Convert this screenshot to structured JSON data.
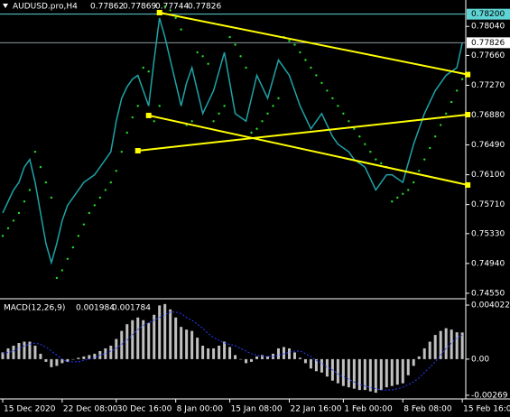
{
  "chart_data": [
    {
      "type": "line",
      "title": "AUDUSD.pro,H4",
      "ohlc": [
        0.77862,
        0.77869,
        0.77744,
        0.77826
      ],
      "color": "#1fa3a8",
      "categories": [
        "15 Dec 2020",
        null,
        null,
        null,
        null,
        null,
        null,
        null,
        null,
        null,
        null,
        "22 Dec 08:00",
        null,
        null,
        null,
        null,
        null,
        null,
        null,
        null,
        null,
        "30 Dec 16:00",
        null,
        null,
        null,
        null,
        null,
        null,
        null,
        null,
        null,
        null,
        "8 Jan 00:00",
        null,
        null,
        null,
        null,
        null,
        null,
        null,
        null,
        null,
        "15 Jan 08:00",
        null,
        null,
        null,
        null,
        null,
        null,
        null,
        null,
        null,
        null,
        "22 Jan 16:00",
        null,
        null,
        null,
        null,
        null,
        null,
        null,
        null,
        null,
        "1 Feb 00:00",
        null,
        null,
        null,
        null,
        null,
        null,
        null,
        null,
        null,
        null,
        "8 Feb 08:00",
        null,
        null,
        null,
        null,
        null,
        null,
        null,
        null,
        null,
        null,
        "15 Feb 16:00"
      ],
      "values": [
        0.756,
        0.7575,
        0.759,
        0.76,
        0.762,
        0.763,
        0.76,
        0.756,
        0.752,
        0.7495,
        0.752,
        0.755,
        0.757,
        0.758,
        0.759,
        0.76,
        0.7605,
        0.761,
        0.762,
        0.763,
        0.764,
        0.768,
        0.771,
        0.7725,
        0.7735,
        0.774,
        0.772,
        0.77,
        0.776,
        0.7815,
        0.779,
        0.776,
        0.773,
        0.77,
        0.773,
        0.775,
        0.772,
        0.769,
        0.7705,
        0.772,
        0.7745,
        0.777,
        0.773,
        0.769,
        0.7685,
        0.768,
        0.771,
        0.774,
        0.7725,
        0.771,
        0.7735,
        0.776,
        0.775,
        0.774,
        0.772,
        0.77,
        0.7685,
        0.767,
        0.768,
        0.769,
        0.7675,
        0.766,
        0.765,
        0.7645,
        0.764,
        0.763,
        0.7625,
        0.762,
        0.7605,
        0.759,
        0.76,
        0.761,
        0.761,
        0.7605,
        0.76,
        0.7625,
        0.765,
        0.767,
        0.769,
        0.7705,
        0.772,
        0.773,
        0.774,
        0.7745,
        0.775,
        0.77826
      ],
      "sar": {
        "color": "#22dd22",
        "values": [
          0.753,
          0.754,
          0.755,
          0.756,
          0.7575,
          0.759,
          0.764,
          0.762,
          0.76,
          0.758,
          0.7475,
          0.7485,
          0.75,
          0.7515,
          0.753,
          0.7545,
          0.756,
          0.757,
          0.758,
          0.759,
          0.76,
          0.7615,
          0.764,
          0.7665,
          0.7685,
          0.77,
          0.775,
          0.7745,
          0.768,
          0.77,
          0.783,
          0.7825,
          0.7815,
          0.78,
          0.7675,
          0.768,
          0.777,
          0.7765,
          0.7755,
          0.768,
          0.769,
          0.77,
          0.779,
          0.778,
          0.7765,
          0.775,
          0.7665,
          0.767,
          0.768,
          0.769,
          0.77,
          0.771,
          0.779,
          0.7785,
          0.778,
          0.777,
          0.776,
          0.775,
          0.774,
          0.773,
          0.772,
          0.771,
          0.77,
          0.769,
          0.768,
          0.767,
          0.766,
          0.765,
          0.764,
          0.763,
          0.7625,
          0.762,
          0.7575,
          0.758,
          0.7585,
          0.759,
          0.76,
          0.7615,
          0.763,
          0.7645,
          0.766,
          0.7675,
          0.769,
          0.7705,
          0.772,
          0.7735
        ]
      },
      "trendlines": {
        "color": "#ffff00",
        "lines": [
          {
            "x": [
              29,
              86
            ],
            "y": [
              0.7822,
              0.7741
            ]
          },
          {
            "x": [
              25,
              86
            ],
            "y": [
              0.76414,
              0.76886
            ]
          },
          {
            "x": [
              27,
              86
            ],
            "y": [
              0.76875,
              0.75966
            ]
          }
        ]
      },
      "price_lines": [
        {
          "value": 0.782,
          "label": "0.78200",
          "color": "#5fd3d3"
        },
        {
          "value": 0.77826,
          "color": "#8a9aa0"
        }
      ],
      "ylim": [
        0.7449,
        0.78385
      ],
      "yticks": [
        {
          "value": 0.7804,
          "label": "0.78040"
        },
        {
          "value": 0.7766,
          "label": "0.77660"
        },
        {
          "value": 0.7727,
          "label": "0.77270"
        },
        {
          "value": 0.7688,
          "label": "0.76880"
        },
        {
          "value": 0.7649,
          "label": "0.76490"
        },
        {
          "value": 0.761,
          "label": "0.76100"
        },
        {
          "value": 0.7571,
          "label": "0.75710"
        },
        {
          "value": 0.7533,
          "label": "0.75330"
        },
        {
          "value": 0.7494,
          "label": "0.74940"
        },
        {
          "value": 0.7455,
          "label": "0.74550"
        }
      ]
    },
    {
      "type": "bar",
      "title": "MACD(12,26,9)",
      "readout": [
        0.001984,
        0.001784
      ],
      "color": "#c0c0c0",
      "signal_color": "#2a3cff",
      "values": [
        0.0005,
        0.0008,
        0.001,
        0.0012,
        0.0013,
        0.0013,
        0.001,
        0.0004,
        -0.0002,
        -0.0006,
        -0.0005,
        -0.0003,
        -0.0002,
        0.0,
        0.0001,
        0.0002,
        0.0003,
        0.0004,
        0.0006,
        0.0008,
        0.001,
        0.0015,
        0.0021,
        0.0026,
        0.0029,
        0.0031,
        0.0029,
        0.0027,
        0.0033,
        0.004,
        0.0041,
        0.0037,
        0.0031,
        0.0024,
        0.0022,
        0.0021,
        0.0016,
        0.001,
        0.0008,
        0.0008,
        0.001,
        0.0013,
        0.0009,
        0.0003,
        0.0,
        -0.0003,
        -0.0002,
        0.0002,
        0.0003,
        0.0002,
        0.0004,
        0.0008,
        0.0009,
        0.0008,
        0.0005,
        0.0001,
        -0.0003,
        -0.0007,
        -0.0009,
        -0.001,
        -0.0013,
        -0.0016,
        -0.0018,
        -0.002,
        -0.0021,
        -0.0022,
        -0.0023,
        -0.0023,
        -0.0024,
        -0.0025,
        -0.0023,
        -0.0021,
        -0.002,
        -0.0019,
        -0.0018,
        -0.0012,
        -0.0005,
        0.0002,
        0.0008,
        0.0013,
        0.0018,
        0.0021,
        0.0023,
        0.0022,
        0.002,
        0.001984
      ],
      "signal": [
        0.0004,
        0.0005,
        0.0006,
        0.0008,
        0.001,
        0.0011,
        0.0012,
        0.0011,
        0.0009,
        0.0006,
        0.0003,
        0.0,
        -0.0002,
        -0.0002,
        -0.0002,
        -0.0001,
        0.0,
        0.0001,
        0.0003,
        0.0004,
        0.0006,
        0.0008,
        0.0011,
        0.0014,
        0.0018,
        0.0022,
        0.0025,
        0.0027,
        0.0029,
        0.0031,
        0.0033,
        0.0035,
        0.0035,
        0.0034,
        0.0031,
        0.0029,
        0.0026,
        0.0023,
        0.0019,
        0.0016,
        0.0014,
        0.0012,
        0.0011,
        0.001,
        0.0008,
        0.0006,
        0.0004,
        0.0003,
        0.0002,
        0.0002,
        0.0002,
        0.0003,
        0.0004,
        0.0005,
        0.0006,
        0.0006,
        0.0004,
        0.0002,
        -0.0001,
        -0.0003,
        -0.0006,
        -0.0008,
        -0.0011,
        -0.0013,
        -0.0015,
        -0.0017,
        -0.0019,
        -0.002,
        -0.0021,
        -0.0022,
        -0.0023,
        -0.0023,
        -0.0023,
        -0.0022,
        -0.0021,
        -0.0019,
        -0.0017,
        -0.0014,
        -0.001,
        -0.0006,
        -0.0002,
        0.0003,
        0.0008,
        0.0012,
        0.0016,
        0.001784
      ],
      "ylim": [
        -0.00283,
        0.00436
      ],
      "yticks": [
        0.004022,
        {
          "value": 0,
          "label": "0.00"
        },
        -0.00269
      ]
    }
  ]
}
